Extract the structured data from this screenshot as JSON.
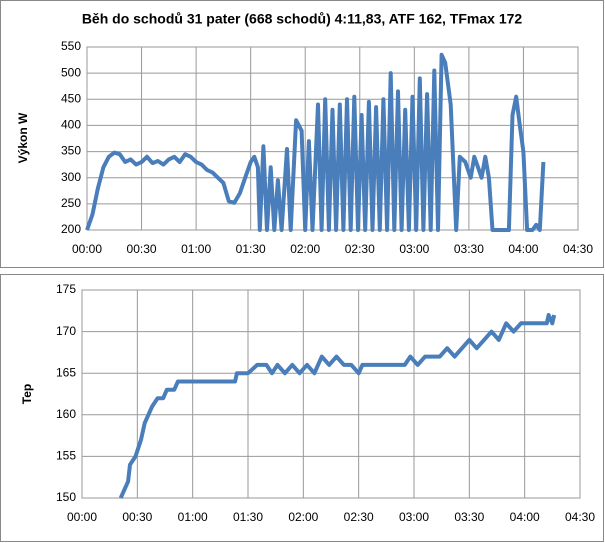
{
  "chart_data": [
    {
      "type": "line",
      "title": "Běh do schodů 31 pater (668 schodů) 4:11,83, ATF 162, TFmax 172",
      "y_label": "Výkon W",
      "xlim": [
        0,
        270
      ],
      "ylim": [
        200,
        550
      ],
      "grid": true,
      "xticks": [
        {
          "value": 0,
          "label": "00:00"
        },
        {
          "value": 30,
          "label": "00:30"
        },
        {
          "value": 60,
          "label": "01:00"
        },
        {
          "value": 90,
          "label": "01:30"
        },
        {
          "value": 120,
          "label": "02:00"
        },
        {
          "value": 150,
          "label": "02:30"
        },
        {
          "value": 180,
          "label": "03:00"
        },
        {
          "value": 210,
          "label": "03:30"
        },
        {
          "value": 240,
          "label": "04:00"
        },
        {
          "value": 270,
          "label": "04:30"
        }
      ],
      "yticks": [
        200,
        250,
        300,
        350,
        400,
        450,
        500,
        550
      ],
      "x": [
        0,
        3,
        6,
        9,
        12,
        15,
        18,
        21,
        24,
        27,
        30,
        33,
        36,
        39,
        42,
        45,
        48,
        51,
        54,
        57,
        60,
        63,
        66,
        69,
        72,
        75,
        78,
        81,
        84,
        87,
        90,
        92,
        94,
        95,
        97,
        99,
        101,
        103,
        105,
        107,
        110,
        112,
        115,
        118,
        120,
        122,
        124,
        127,
        129,
        131,
        133,
        135,
        137,
        139,
        141,
        143,
        145,
        147,
        149,
        151,
        153,
        155,
        157,
        159,
        161,
        163,
        165,
        167,
        169,
        171,
        173,
        175,
        177,
        179,
        181,
        183,
        185,
        187,
        189,
        191,
        193,
        195,
        197,
        200,
        203,
        205,
        208,
        211,
        213,
        215,
        217,
        219,
        221,
        223,
        227,
        232,
        234,
        236,
        238,
        240,
        242,
        245,
        247,
        249,
        251
      ],
      "series": [
        {
          "color": "#4a7ebb",
          "values": [
            200,
            230,
            280,
            320,
            340,
            348,
            345,
            330,
            335,
            325,
            330,
            340,
            328,
            332,
            325,
            335,
            340,
            330,
            345,
            340,
            330,
            325,
            315,
            310,
            300,
            290,
            255,
            252,
            270,
            300,
            330,
            340,
            320,
            200,
            360,
            200,
            320,
            200,
            295,
            200,
            355,
            200,
            410,
            390,
            200,
            370,
            200,
            440,
            200,
            450,
            200,
            430,
            200,
            440,
            200,
            450,
            200,
            455,
            200,
            420,
            200,
            445,
            200,
            435,
            200,
            450,
            200,
            500,
            200,
            465,
            200,
            430,
            200,
            455,
            200,
            490,
            200,
            460,
            200,
            505,
            200,
            535,
            520,
            440,
            200,
            340,
            330,
            300,
            340,
            320,
            300,
            340,
            300,
            200,
            200,
            200,
            420,
            455,
            400,
            350,
            200,
            200,
            210,
            200,
            330
          ]
        }
      ]
    },
    {
      "type": "line",
      "y_label": "Tep",
      "xlim": [
        0,
        270
      ],
      "ylim": [
        150,
        175
      ],
      "grid": true,
      "xticks": [
        {
          "value": 0,
          "label": "00:00"
        },
        {
          "value": 30,
          "label": "00:30"
        },
        {
          "value": 60,
          "label": "01:00"
        },
        {
          "value": 90,
          "label": "01:30"
        },
        {
          "value": 120,
          "label": "02:00"
        },
        {
          "value": 150,
          "label": "02:30"
        },
        {
          "value": 180,
          "label": "03:00"
        },
        {
          "value": 210,
          "label": "03:30"
        },
        {
          "value": 240,
          "label": "04:00"
        },
        {
          "value": 270,
          "label": "04:30"
        }
      ],
      "yticks": [
        150,
        155,
        160,
        165,
        170,
        175
      ],
      "x": [
        21,
        23,
        25,
        26,
        29,
        32,
        34,
        36,
        38,
        41,
        44,
        46,
        50,
        52,
        60,
        70,
        83,
        84,
        90,
        95,
        100,
        103,
        106,
        110,
        114,
        118,
        122,
        126,
        130,
        134,
        138,
        142,
        146,
        150,
        152,
        160,
        170,
        175,
        178,
        182,
        186,
        190,
        194,
        198,
        202,
        206,
        210,
        214,
        218,
        222,
        226,
        230,
        234,
        238,
        245,
        252,
        253,
        255,
        256
      ],
      "series": [
        {
          "color": "#4a7ebb",
          "values": [
            150,
            151,
            152,
            154,
            155,
            157,
            159,
            160,
            161,
            162,
            162,
            163,
            163,
            164,
            164,
            164,
            164,
            165,
            165,
            166,
            166,
            165,
            166,
            165,
            166,
            165,
            166,
            165,
            167,
            166,
            167,
            166,
            166,
            165,
            166,
            166,
            166,
            166,
            167,
            166,
            167,
            167,
            167,
            168,
            167,
            168,
            169,
            168,
            169,
            170,
            169,
            171,
            170,
            171,
            171,
            171,
            172,
            171,
            172
          ]
        }
      ]
    }
  ]
}
